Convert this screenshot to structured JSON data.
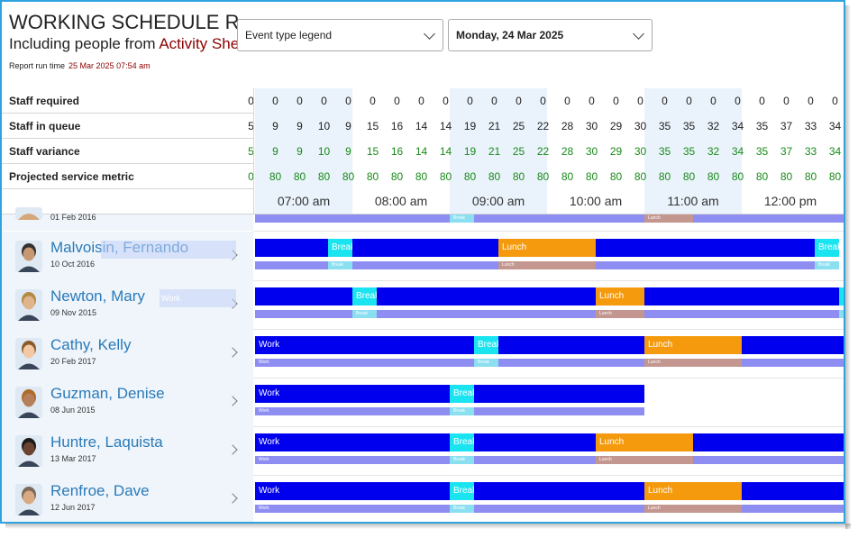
{
  "header": {
    "title": "WORKING SCHEDULE REPORT",
    "subtitle_prefix": "Including people from",
    "subtitle_source": "Activity Sheet",
    "run_time_label": "Report run time",
    "run_time_value": "25 Mar 2025 07:54 am"
  },
  "controls": {
    "legend_dropdown": "Event type legend",
    "date_dropdown": "Monday, 24 Mar 2025"
  },
  "metrics": {
    "labels": [
      "Staff required",
      "Staff in queue",
      "Staff variance",
      "Projected service metric"
    ],
    "staff_required": [
      "0",
      "0",
      "0",
      "0",
      "0",
      "0",
      "0",
      "0",
      "0",
      "0",
      "0",
      "0",
      "0",
      "0",
      "0",
      "0",
      "0",
      "0",
      "0",
      "0",
      "0",
      "0",
      "0",
      "0",
      "0"
    ],
    "staff_in_queue": [
      "5",
      "9",
      "9",
      "10",
      "9",
      "15",
      "16",
      "14",
      "14",
      "19",
      "21",
      "25",
      "22",
      "28",
      "30",
      "29",
      "30",
      "35",
      "35",
      "32",
      "34",
      "35",
      "37",
      "33",
      "34"
    ],
    "staff_variance": [
      "5",
      "9",
      "9",
      "10",
      "9",
      "15",
      "16",
      "14",
      "14",
      "19",
      "21",
      "25",
      "22",
      "28",
      "30",
      "29",
      "30",
      "35",
      "35",
      "32",
      "34",
      "35",
      "37",
      "33",
      "34"
    ],
    "projected_metric": [
      "0",
      "80",
      "80",
      "80",
      "80",
      "80",
      "80",
      "80",
      "80",
      "80",
      "80",
      "80",
      "80",
      "80",
      "80",
      "80",
      "80",
      "80",
      "80",
      "80",
      "80",
      "80",
      "80",
      "80",
      "80"
    ]
  },
  "timeline": {
    "hours": [
      "07:00 am",
      "08:00 am",
      "09:00 am",
      "10:00 am",
      "11:00 am",
      "12:00 pm"
    ]
  },
  "colors": {
    "work": "#0000ee",
    "break": "#19e4f0",
    "lunch": "#f59a0c",
    "work_sub": "#8e8ef2",
    "break_sub": "#8adff0",
    "lunch_sub": "#c3968f",
    "accent": "#2a7ab8",
    "variance": "#1a8a1a",
    "title_red": "#8b0000"
  },
  "staff": [
    {
      "name": "",
      "date": "01 Feb 2016",
      "events": [
        {
          "type": "work_sub",
          "start": "07:00",
          "end": "13:30",
          "label": ""
        },
        {
          "type": "break_sub",
          "start": "09:00",
          "end": "09:15",
          "label": "Break"
        },
        {
          "type": "lunch_sub",
          "start": "11:00",
          "end": "11:30",
          "label": "Lunch"
        }
      ]
    },
    {
      "name": "Malvoisin, Fernando",
      "date": "10 Oct 2016",
      "ghost": "",
      "events": [
        {
          "type": "work",
          "start": "07:00",
          "end": "07:45",
          "label": ""
        },
        {
          "type": "break",
          "start": "07:45",
          "end": "08:00",
          "label": "Break"
        },
        {
          "type": "work",
          "start": "08:00",
          "end": "09:30",
          "label": ""
        },
        {
          "type": "lunch",
          "start": "09:30",
          "end": "10:30",
          "label": "Lunch"
        },
        {
          "type": "work",
          "start": "10:30",
          "end": "12:45",
          "label": ""
        },
        {
          "type": "break",
          "start": "12:45",
          "end": "13:00",
          "label": "Break"
        }
      ]
    },
    {
      "name": "Newton, Mary",
      "date": "09 Nov 2015",
      "ghost": "Work",
      "events": [
        {
          "type": "work",
          "start": "07:00",
          "end": "08:00",
          "label": ""
        },
        {
          "type": "break",
          "start": "08:00",
          "end": "08:15",
          "label": "Break"
        },
        {
          "type": "work",
          "start": "08:15",
          "end": "10:30",
          "label": ""
        },
        {
          "type": "lunch",
          "start": "10:30",
          "end": "11:00",
          "label": "Lunch"
        },
        {
          "type": "work",
          "start": "11:00",
          "end": "13:00",
          "label": ""
        },
        {
          "type": "break",
          "start": "13:00",
          "end": "13:15",
          "label": ""
        }
      ]
    },
    {
      "name": "Cathy, Kelly",
      "date": "20 Feb 2017",
      "events": [
        {
          "type": "work",
          "start": "07:00",
          "end": "09:15",
          "label": "Work"
        },
        {
          "type": "break",
          "start": "09:15",
          "end": "09:30",
          "label": "Break"
        },
        {
          "type": "work",
          "start": "09:30",
          "end": "11:00",
          "label": ""
        },
        {
          "type": "lunch",
          "start": "11:00",
          "end": "12:00",
          "label": "Lunch"
        },
        {
          "type": "work",
          "start": "12:00",
          "end": "13:30",
          "label": ""
        }
      ]
    },
    {
      "name": "Guzman, Denise",
      "date": "08 Jun 2015",
      "events": [
        {
          "type": "work",
          "start": "07:00",
          "end": "09:00",
          "label": "Work"
        },
        {
          "type": "break",
          "start": "09:00",
          "end": "09:15",
          "label": "Break"
        },
        {
          "type": "work",
          "start": "09:15",
          "end": "11:00",
          "label": ""
        }
      ]
    },
    {
      "name": "Huntre, Laquista",
      "date": "13 Mar 2017",
      "events": [
        {
          "type": "work",
          "start": "07:00",
          "end": "09:00",
          "label": "Work"
        },
        {
          "type": "break",
          "start": "09:00",
          "end": "09:15",
          "label": "Break"
        },
        {
          "type": "work",
          "start": "09:15",
          "end": "10:30",
          "label": ""
        },
        {
          "type": "lunch",
          "start": "10:30",
          "end": "11:30",
          "label": "Lunch"
        },
        {
          "type": "work",
          "start": "11:30",
          "end": "13:30",
          "label": ""
        }
      ]
    },
    {
      "name": "Renfroe, Dave",
      "date": "12 Jun 2017",
      "events": [
        {
          "type": "work",
          "start": "07:00",
          "end": "09:00",
          "label": "Work"
        },
        {
          "type": "break",
          "start": "09:00",
          "end": "09:15",
          "label": "Break"
        },
        {
          "type": "work",
          "start": "09:15",
          "end": "11:00",
          "label": ""
        },
        {
          "type": "lunch",
          "start": "11:00",
          "end": "12:00",
          "label": "Lunch"
        },
        {
          "type": "work",
          "start": "12:00",
          "end": "13:30",
          "label": ""
        }
      ]
    }
  ]
}
